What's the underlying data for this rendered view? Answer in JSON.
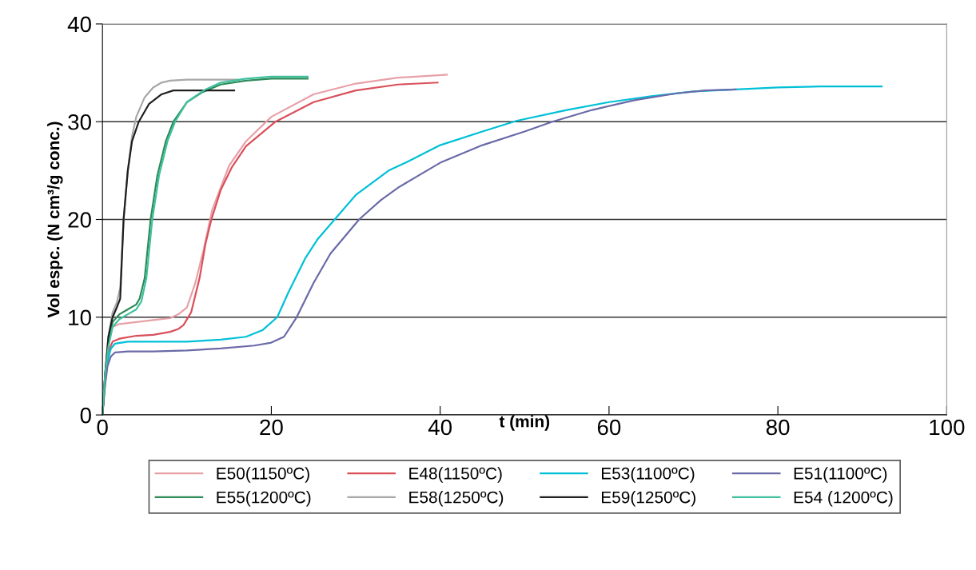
{
  "chart_data": {
    "type": "line",
    "xlabel": "t (min)",
    "ylabel": "Vol espc. (N cm³/g conc.)",
    "xlim": [
      0,
      100
    ],
    "ylim": [
      0,
      40
    ],
    "xticks": [
      0,
      20,
      40,
      60,
      80,
      100
    ],
    "yticks": [
      0,
      10,
      20,
      30,
      40
    ],
    "grid": "y",
    "legend": "bottom",
    "marker": "none",
    "line_style": "solid",
    "series": [
      {
        "name": "E50(1150ºC)",
        "color": "#e8a0a8",
        "x": [
          0,
          0.7,
          1.2,
          2,
          4,
          6,
          8,
          9,
          10,
          11,
          12,
          13,
          15,
          17,
          20,
          25,
          30,
          35,
          40.8
        ],
        "values": [
          0,
          7.5,
          9,
          9.3,
          9.5,
          9.7,
          9.9,
          10.3,
          11,
          13.5,
          17,
          21,
          25.5,
          28,
          30.5,
          32.8,
          33.9,
          34.5,
          34.8
        ]
      },
      {
        "name": "E48(1150ºC)",
        "color": "#d9505a",
        "x": [
          0,
          0.3,
          0.7,
          1.2,
          2,
          4,
          6,
          8,
          9,
          9.6,
          10.5,
          11.5,
          12.2,
          12.9,
          14,
          15.3,
          17,
          20.5,
          25,
          30,
          35,
          39.7
        ],
        "values": [
          0,
          3.5,
          6.5,
          7.5,
          7.8,
          8.1,
          8.2,
          8.5,
          8.8,
          9.2,
          10.5,
          14,
          17.5,
          20,
          23,
          25.3,
          27.5,
          30,
          32,
          33.2,
          33.8,
          34
        ]
      },
      {
        "name": "E53(1100ºC)",
        "color": "#00c0d8",
        "x": [
          0,
          0.3,
          0.6,
          1,
          1.5,
          3,
          6,
          10,
          14,
          17,
          19,
          20.7,
          22,
          24,
          25.5,
          27.3,
          30,
          33.9,
          35.9,
          40,
          45,
          49.1,
          55,
          60,
          65,
          70,
          75,
          80,
          85,
          92.3
        ],
        "values": [
          0,
          3.5,
          5.5,
          6.8,
          7.3,
          7.5,
          7.5,
          7.5,
          7.7,
          8,
          8.7,
          10,
          12.5,
          16,
          18,
          19.8,
          22.5,
          25,
          25.8,
          27.6,
          29,
          30.1,
          31.2,
          32,
          32.6,
          33.1,
          33.3,
          33.5,
          33.6,
          33.6
        ]
      },
      {
        "name": "E51(1100ºC)",
        "color": "#6a6aa8",
        "x": [
          0,
          0.3,
          0.6,
          1,
          1.5,
          3,
          6,
          10,
          14,
          18,
          20,
          21.5,
          23,
          25,
          27,
          30.4,
          33,
          35.1,
          40,
          45,
          50,
          53.3,
          58,
          63,
          68,
          71.4,
          75
        ],
        "values": [
          0,
          3,
          5,
          6,
          6.4,
          6.5,
          6.5,
          6.6,
          6.8,
          7.1,
          7.4,
          8,
          10,
          13.5,
          16.5,
          20,
          22,
          23.3,
          25.8,
          27.6,
          29,
          30,
          31.2,
          32.2,
          32.9,
          33.2,
          33.3
        ]
      },
      {
        "name": "E55(1200ºC)",
        "color": "#2e8b57",
        "x": [
          0,
          0.3,
          0.7,
          1.2,
          2,
          3,
          4,
          4.4,
          5,
          5.7,
          6.5,
          7.5,
          8.4,
          10,
          11.8,
          14,
          17,
          20,
          24.3
        ],
        "values": [
          0,
          4,
          7.5,
          9.5,
          10.3,
          10.8,
          11.3,
          11.9,
          14,
          20,
          24.5,
          28,
          30,
          32,
          33,
          33.8,
          34.2,
          34.4,
          34.4
        ]
      },
      {
        "name": "E58(1250ºC)",
        "color": "#a8a8a8",
        "x": [
          0,
          0.3,
          0.7,
          1.2,
          1.7,
          2.1,
          2.5,
          3,
          3.5,
          4,
          5,
          6,
          7,
          8,
          10,
          12,
          16
        ],
        "values": [
          0,
          4,
          8,
          10.5,
          11.5,
          13,
          20,
          25,
          28.5,
          30.5,
          32.5,
          33.5,
          34,
          34.2,
          34.3,
          34.3,
          34.3
        ]
      },
      {
        "name": "E59(1250ºC)",
        "color": "#202020",
        "x": [
          0,
          0.3,
          0.7,
          1.2,
          1.7,
          2.1,
          2.5,
          3,
          3.5,
          4.3,
          5.5,
          7,
          8.4,
          10,
          12,
          15.6
        ],
        "values": [
          0,
          4,
          8,
          10,
          11,
          11.9,
          20,
          25,
          28,
          30,
          31.8,
          32.8,
          33.2,
          33.2,
          33.2,
          33.2
        ]
      },
      {
        "name": "E54 (1200ºC)",
        "color": "#40c0a0",
        "x": [
          0,
          0.3,
          0.7,
          1.2,
          2,
          3,
          4,
          4.6,
          5.2,
          5.9,
          6.7,
          7.7,
          8.6,
          10,
          12,
          14,
          17,
          20,
          24.3
        ],
        "values": [
          0,
          4,
          7,
          9,
          9.8,
          10.3,
          10.8,
          11.6,
          14,
          20,
          24.5,
          28,
          30,
          32,
          33.2,
          34,
          34.4,
          34.6,
          34.6
        ]
      }
    ]
  }
}
